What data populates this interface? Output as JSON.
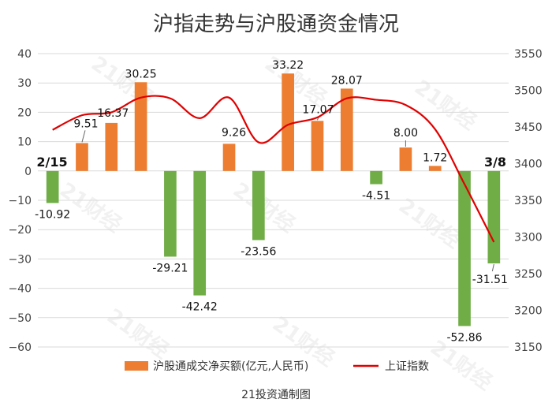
{
  "chart_data": {
    "type": "bar",
    "title": "沪指走势与沪股通资金情况",
    "categories": [
      "2/15",
      "",
      "",
      "",
      "",
      "",
      "",
      "",
      "",
      "",
      "",
      "",
      "",
      "",
      "",
      "3/8"
    ],
    "series": [
      {
        "name": "沪股通成交净买额(亿元,人民币)",
        "type": "bar",
        "axis": "left",
        "color": "#ED7D31",
        "negative_color": "#70AD47",
        "values": [
          -10.92,
          9.51,
          16.37,
          30.25,
          -29.21,
          -42.42,
          9.26,
          -23.56,
          33.22,
          17.07,
          28.07,
          -4.51,
          8.0,
          1.72,
          -52.86,
          -31.51
        ],
        "labels": [
          "-10.92",
          "9.51",
          "16.37",
          "30.25",
          "-29.21",
          "-42.42",
          "9.26",
          "-23.56",
          "33.22",
          "17.07",
          "28.07",
          "-4.51",
          "8.00",
          "1.72",
          "-52.86",
          "-31.51"
        ]
      },
      {
        "name": "上证指数",
        "type": "line",
        "axis": "right",
        "color": "#E00000",
        "values": [
          3446,
          3466,
          3470,
          3490,
          3489,
          3462,
          3490,
          3429,
          3453,
          3463,
          3489,
          3487,
          3480,
          3447,
          3372,
          3293
        ]
      }
    ],
    "y_left": {
      "ticks": [
        40,
        30,
        20,
        10,
        0,
        -10,
        -20,
        -30,
        -40,
        -50,
        -60
      ],
      "tick_labels": [
        "40",
        "30",
        "20",
        "10",
        "0",
        "−10",
        "−20",
        "−30",
        "−40",
        "−50",
        "−60"
      ],
      "range": [
        -60,
        40
      ]
    },
    "y_right": {
      "ticks": [
        3550,
        3500,
        3450,
        3400,
        3350,
        3300,
        3250,
        3200,
        3150
      ],
      "tick_labels": [
        "3550",
        "3500",
        "3450",
        "3400",
        "3350",
        "3300",
        "3250",
        "3200",
        "3150"
      ],
      "range": [
        3150,
        3550
      ]
    },
    "grid": true,
    "legend_position": "bottom",
    "annotations": {
      "start": "2/15",
      "end": "3/8"
    }
  },
  "watermark": "21财经",
  "credit": "21投资通制图"
}
